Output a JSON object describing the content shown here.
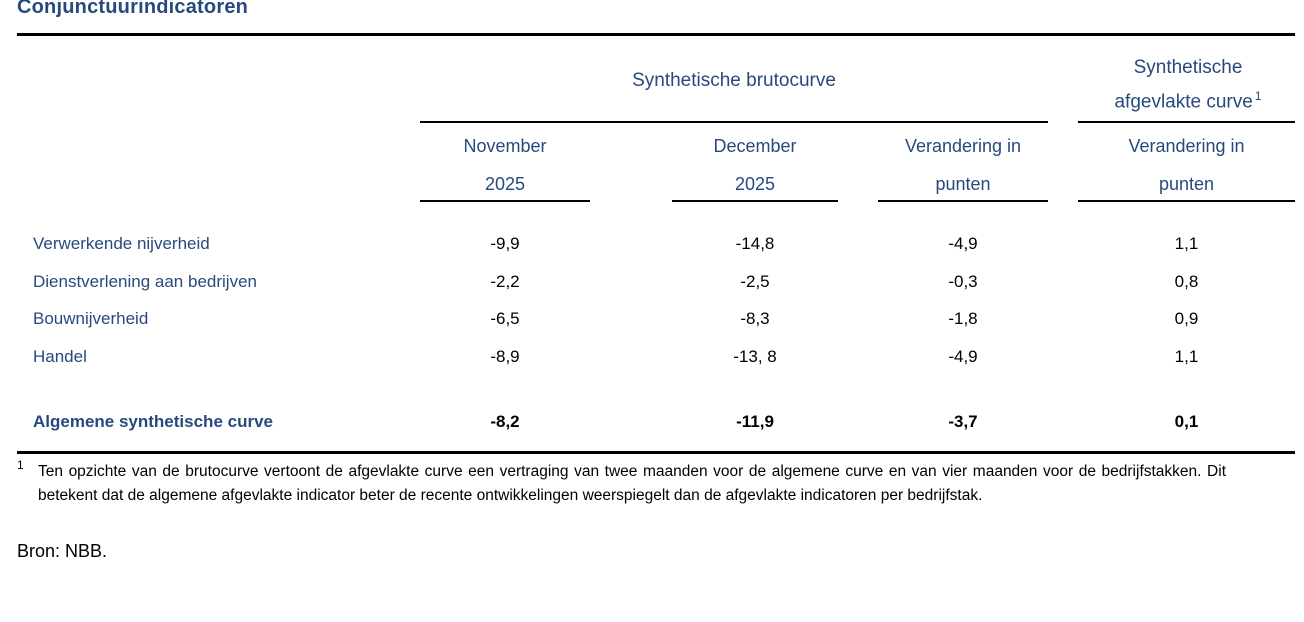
{
  "title": "Conjunctuurindicatoren",
  "colors": {
    "navy_text": "#27497E",
    "body_text": "#000000",
    "rule": "#000000"
  },
  "table": {
    "group_bruto": "Synthetische brutocurve",
    "group_afgevlakt": "Synthetische afgevlakte curve",
    "footnote_ref": "1",
    "columns": [
      {
        "line1": "November",
        "line2": "2025"
      },
      {
        "line1": "December",
        "line2": "2025"
      },
      {
        "line1": "Verandering in",
        "line2": "punten"
      },
      {
        "line1": "Verandering in",
        "line2": "punten"
      }
    ],
    "rows": [
      {
        "label": "Verwerkende nijverheid",
        "values": [
          "-9,9",
          "-14,8",
          "-4,9",
          "1,1"
        ]
      },
      {
        "label": "Dienstverlening aan bedrijven",
        "values": [
          "-2,2",
          "-2,5",
          "-0,3",
          "0,8"
        ]
      },
      {
        "label": "Bouwnijverheid",
        "values": [
          "-6,5",
          "-8,3",
          "-1,8",
          "0,9"
        ]
      },
      {
        "label": "Handel",
        "values": [
          "-8,9",
          "-13, 8",
          "-4,9",
          "1,1"
        ]
      }
    ],
    "total": {
      "label": "Algemene synthetische curve",
      "values": [
        "-8,2",
        "-11,9",
        "-3,7",
        "0,1"
      ]
    }
  },
  "footnote": {
    "marker": "1",
    "text": "Ten opzichte van de brutocurve vertoont de afgevlakte curve een vertraging van twee maanden voor de algemene curve en van vier maanden voor de bedrijfstakken. Dit betekent dat de algemene afgevlakte indicator beter de recente ontwikkelingen weerspiegelt dan de afgevlakte indicatoren per bedrijfstak."
  },
  "source": "Bron: NBB."
}
